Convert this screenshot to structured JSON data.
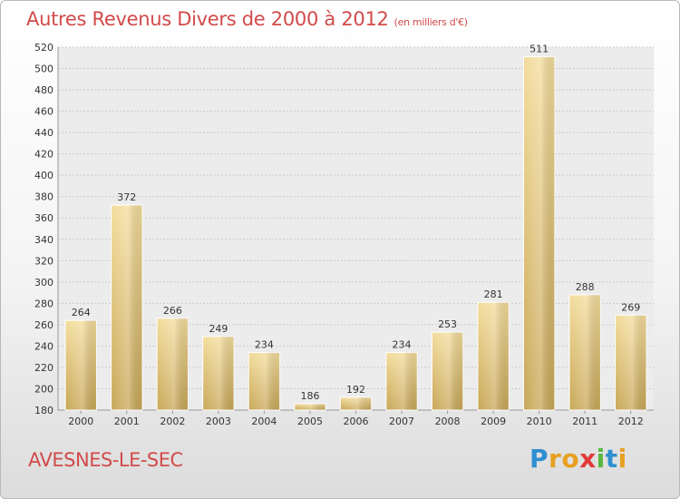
{
  "header": {
    "title": "Autres Revenus Divers de 2000 à 2012",
    "subtitle": "(en milliers d'€)"
  },
  "footer": {
    "place": "AVESNES-LE-SEC",
    "logo_letters": [
      "P",
      "r",
      "o",
      "x",
      "i",
      "t",
      "i"
    ],
    "logo_colors": [
      "#2f8fd0",
      "#e8a020",
      "#e8a020",
      "#e23a3a",
      "#58b840",
      "#2f8fd0",
      "#e8a020"
    ]
  },
  "chart_data": {
    "type": "bar",
    "categories": [
      "2000",
      "2001",
      "2002",
      "2003",
      "2004",
      "2005",
      "2006",
      "2007",
      "2008",
      "2009",
      "2010",
      "2011",
      "2012"
    ],
    "values": [
      264,
      372,
      266,
      249,
      234,
      186,
      192,
      234,
      253,
      281,
      511,
      288,
      269
    ],
    "ylim": [
      180,
      520
    ],
    "yticks": [
      180,
      200,
      220,
      240,
      260,
      280,
      300,
      320,
      340,
      360,
      380,
      400,
      420,
      440,
      460,
      480,
      500,
      520
    ],
    "grid": "horizontal",
    "bar_color": "#e6c978"
  }
}
